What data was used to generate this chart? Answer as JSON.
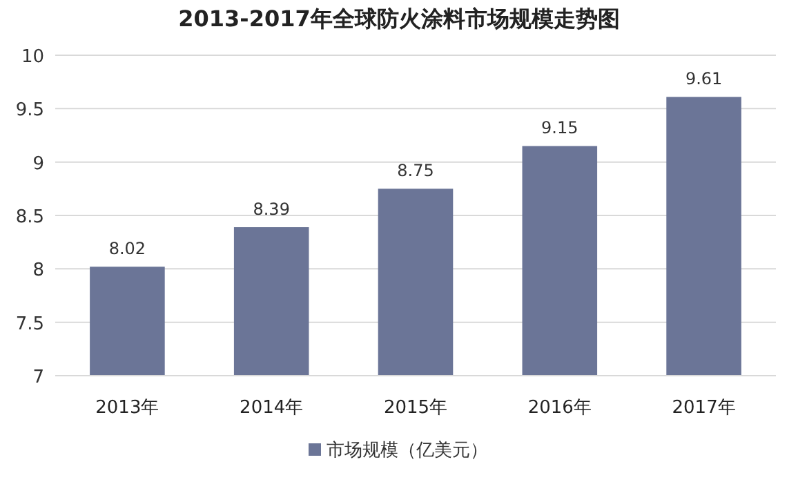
{
  "chart_data": {
    "type": "bar",
    "title": "2013-2017年全球防火涂料市场规模走势图",
    "categories": [
      "2013年",
      "2014年",
      "2015年",
      "2016年",
      "2017年"
    ],
    "series": [
      {
        "name": "市场规模（亿美元）",
        "color": "#6b7597",
        "values": [
          8.02,
          8.39,
          8.75,
          9.15,
          9.61
        ]
      }
    ],
    "ylim": [
      7,
      10
    ],
    "yticks": [
      7,
      7.5,
      8,
      8.5,
      9,
      9.5,
      10
    ],
    "grid": "y",
    "legend": "bottom",
    "data_labels": true
  }
}
